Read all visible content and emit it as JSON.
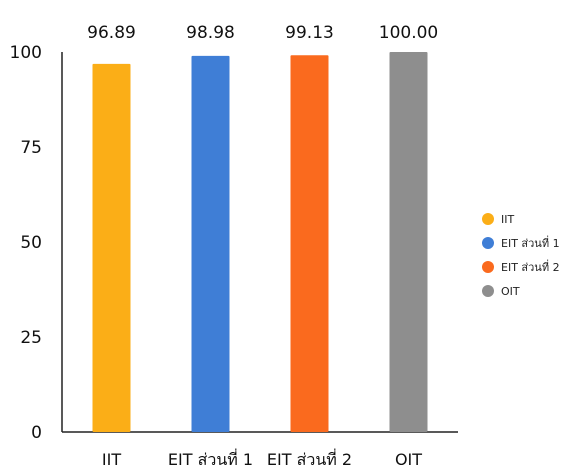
{
  "chart_data": {
    "type": "bar",
    "categories": [
      "IIT",
      "EIT ส่วนที่ 1",
      "EIT ส่วนที่ 2",
      "OIT"
    ],
    "values": [
      96.89,
      98.98,
      99.13,
      100.0
    ],
    "value_labels": [
      "96.89",
      "98.98",
      "99.13",
      "100.00"
    ],
    "colors": [
      "#FBAE17",
      "#3F7ED6",
      "#FA6A1E",
      "#8E8E8E"
    ],
    "ylim": [
      0,
      100
    ],
    "yticks": [
      "0",
      "25",
      "50",
      "75",
      "100"
    ],
    "title": "",
    "xlabel": "",
    "ylabel": "",
    "grid": false,
    "legend": {
      "position": "right",
      "entries": [
        "IIT",
        "EIT ส่วนที่ 1",
        "EIT ส่วนที่ 2",
        "OIT"
      ]
    }
  }
}
